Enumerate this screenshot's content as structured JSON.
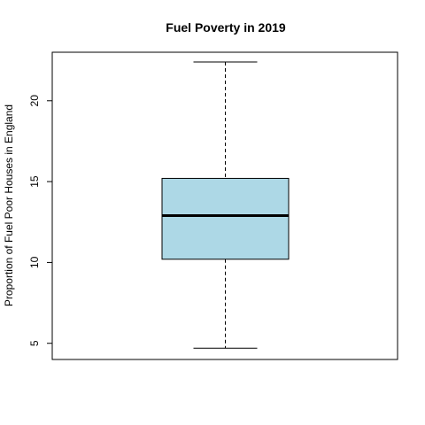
{
  "chart_data": {
    "type": "box",
    "title": "Fuel Poverty in 2019",
    "xlabel": "",
    "ylabel": "Proportion of Fuel Poor Houses in England",
    "ylim": [
      4,
      23
    ],
    "yticks": [
      5,
      10,
      15,
      20
    ],
    "box": {
      "whisker_low": 4.7,
      "q1": 10.2,
      "median": 12.9,
      "q3": 15.2,
      "whisker_high": 22.4
    },
    "colors": {
      "box_fill": "#add8e6",
      "stroke": "#000000"
    },
    "grid": false,
    "legend": "none"
  }
}
